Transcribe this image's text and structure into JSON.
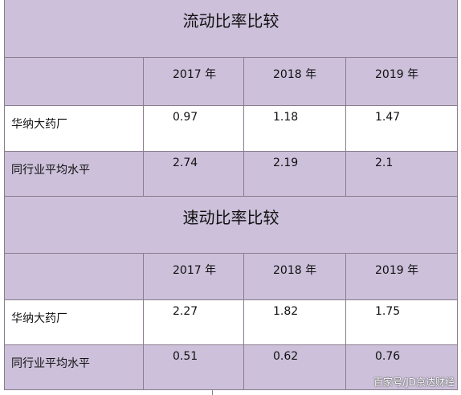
{
  "table1": {
    "title": "流动比率比较",
    "years": [
      "2017 年",
      "2018 年",
      "2019 年"
    ],
    "rows": [
      {
        "label": "华纳大药厂",
        "values": [
          "0.97",
          "1.18",
          "1.47"
        ]
      },
      {
        "label": "同行业平均水平",
        "values": [
          "2.74",
          "2.19",
          "2.1"
        ]
      }
    ]
  },
  "table2": {
    "title": "速动比率比较",
    "years": [
      "2017 年",
      "2018 年",
      "2019 年"
    ],
    "rows": [
      {
        "label": "华纳大药厂",
        "values": [
          "2.27",
          "1.82",
          "1.75"
        ]
      },
      {
        "label": "同行业平均水平",
        "values": [
          "0.51",
          "0.62",
          "0.76"
        ]
      }
    ]
  },
  "watermark": "百家号/JD京达财经",
  "colors": {
    "header_fill": "#ccc0da",
    "border": "#8a7d8f"
  }
}
